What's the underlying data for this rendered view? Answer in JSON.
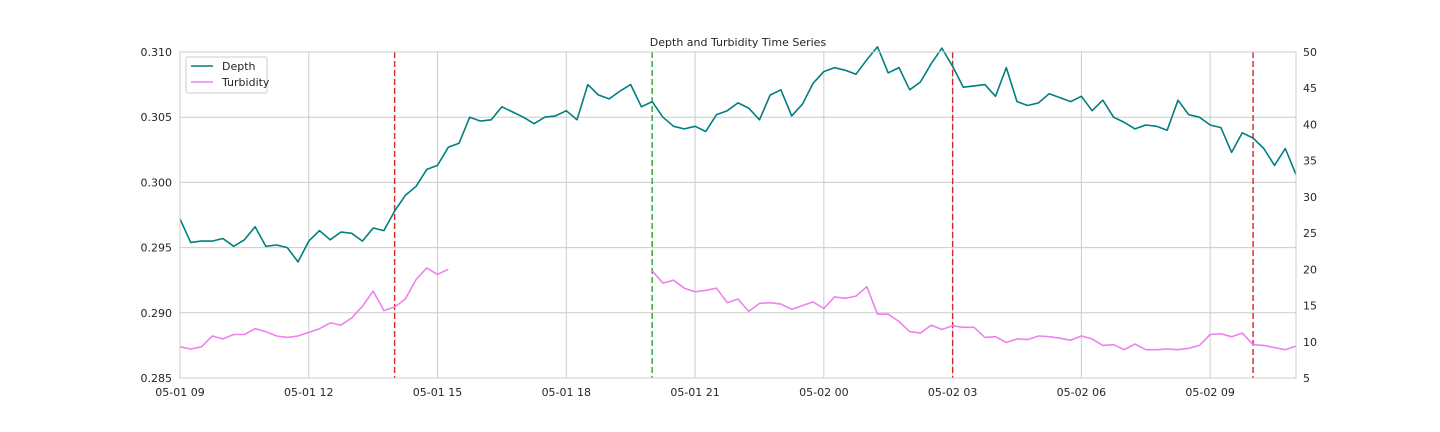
{
  "chart_data": {
    "type": "line",
    "title": "Depth and Turbidity Time Series",
    "xlabel": "",
    "ylabel_left": "",
    "ylabel_right": "",
    "x_start_hours": 0,
    "x_end_hours": 26,
    "x_ticks": [
      {
        "hours": 0,
        "label": "05-01 09"
      },
      {
        "hours": 3,
        "label": "05-01 12"
      },
      {
        "hours": 6,
        "label": "05-01 15"
      },
      {
        "hours": 9,
        "label": "05-01 18"
      },
      {
        "hours": 12,
        "label": "05-01 21"
      },
      {
        "hours": 15,
        "label": "05-02 00"
      },
      {
        "hours": 18,
        "label": "05-02 03"
      },
      {
        "hours": 21,
        "label": "05-02 06"
      },
      {
        "hours": 24,
        "label": "05-02 09"
      }
    ],
    "ylim_left": [
      0.285,
      0.31
    ],
    "y_ticks_left": [
      "0.285",
      "0.290",
      "0.295",
      "0.300",
      "0.305",
      "0.310"
    ],
    "ylim_right": [
      5,
      50
    ],
    "y_ticks_right": [
      "5",
      "10",
      "15",
      "20",
      "25",
      "30",
      "35",
      "40",
      "45",
      "50"
    ],
    "grid": true,
    "legend_position": "top-left",
    "vlines": [
      {
        "hours": 5.0,
        "color": "#d62728",
        "style": "dashed"
      },
      {
        "hours": 11.0,
        "color": "#2ca02c",
        "style": "dashed"
      },
      {
        "hours": 18.0,
        "color": "#d62728",
        "style": "dashed"
      },
      {
        "hours": 25.0,
        "color": "#d62728",
        "style": "dashed"
      }
    ],
    "series": [
      {
        "name": "Depth",
        "axis": "left",
        "color": "#007f80",
        "step_hours": 0.25,
        "values": [
          0.2972,
          0.2954,
          0.2955,
          0.2955,
          0.2957,
          0.2951,
          0.2956,
          0.2966,
          0.2951,
          0.2952,
          0.295,
          0.2939,
          0.2955,
          0.2963,
          0.2956,
          0.2962,
          0.2961,
          0.2955,
          0.2965,
          0.2963,
          0.2978,
          0.299,
          0.2997,
          0.301,
          0.3013,
          0.3027,
          0.303,
          0.305,
          0.3047,
          0.3048,
          0.3058,
          0.3054,
          0.305,
          0.3045,
          0.305,
          0.3051,
          0.3055,
          0.3048,
          0.3075,
          0.3067,
          0.3064,
          0.307,
          0.3075,
          0.3058,
          0.3062,
          0.305,
          0.3043,
          0.3041,
          0.3043,
          0.3039,
          0.3052,
          0.3055,
          0.3061,
          0.3057,
          0.3048,
          0.3067,
          0.3071,
          0.3051,
          0.306,
          0.3076,
          0.3085,
          0.3088,
          0.3086,
          0.3083,
          0.3094,
          0.3104,
          0.3084,
          0.3088,
          0.3071,
          0.3077,
          0.3091,
          0.3103,
          0.3089,
          0.3073,
          0.3074,
          0.3075,
          0.3066,
          0.3088,
          0.3062,
          0.3059,
          0.3061,
          0.3068,
          0.3065,
          0.3062,
          0.3066,
          0.3055,
          0.3063,
          0.305,
          0.3046,
          0.3041,
          0.3044,
          0.3043,
          0.304,
          0.3063,
          0.3052,
          0.305,
          0.3044,
          0.3042,
          0.3023,
          0.3038,
          0.3034,
          0.3026,
          0.3013,
          0.3026,
          0.3006
        ]
      },
      {
        "name": "Turbidity",
        "axis": "right",
        "color": "#ee82ee",
        "step_hours": 0.25,
        "values": [
          9.3,
          9.0,
          9.3,
          10.8,
          10.4,
          11.0,
          11.0,
          11.8,
          11.4,
          10.8,
          10.6,
          10.8,
          11.3,
          11.8,
          12.6,
          12.3,
          13.3,
          14.9,
          17.0,
          14.3,
          14.8,
          15.9,
          18.6,
          20.2,
          19.3,
          20.0,
          null,
          null,
          null,
          null,
          null,
          null,
          null,
          null,
          null,
          null,
          null,
          null,
          null,
          null,
          null,
          null,
          null,
          null,
          19.8,
          18.1,
          18.5,
          17.4,
          16.9,
          17.1,
          17.4,
          15.4,
          15.9,
          14.2,
          15.3,
          15.4,
          15.2,
          14.5,
          15.0,
          15.5,
          14.6,
          16.2,
          16.0,
          16.3,
          17.6,
          13.8,
          13.8,
          12.8,
          11.4,
          11.2,
          12.3,
          11.7,
          12.2,
          12.0,
          12.0,
          10.6,
          10.7,
          9.9,
          10.4,
          10.3,
          10.8,
          10.7,
          10.5,
          10.2,
          10.8,
          10.4,
          9.5,
          9.6,
          8.9,
          9.7,
          8.9,
          8.9,
          9.0,
          8.9,
          9.1,
          9.5,
          11.0,
          11.1,
          10.7,
          11.2,
          9.6,
          9.5,
          9.2,
          8.9,
          9.4
        ]
      }
    ]
  }
}
